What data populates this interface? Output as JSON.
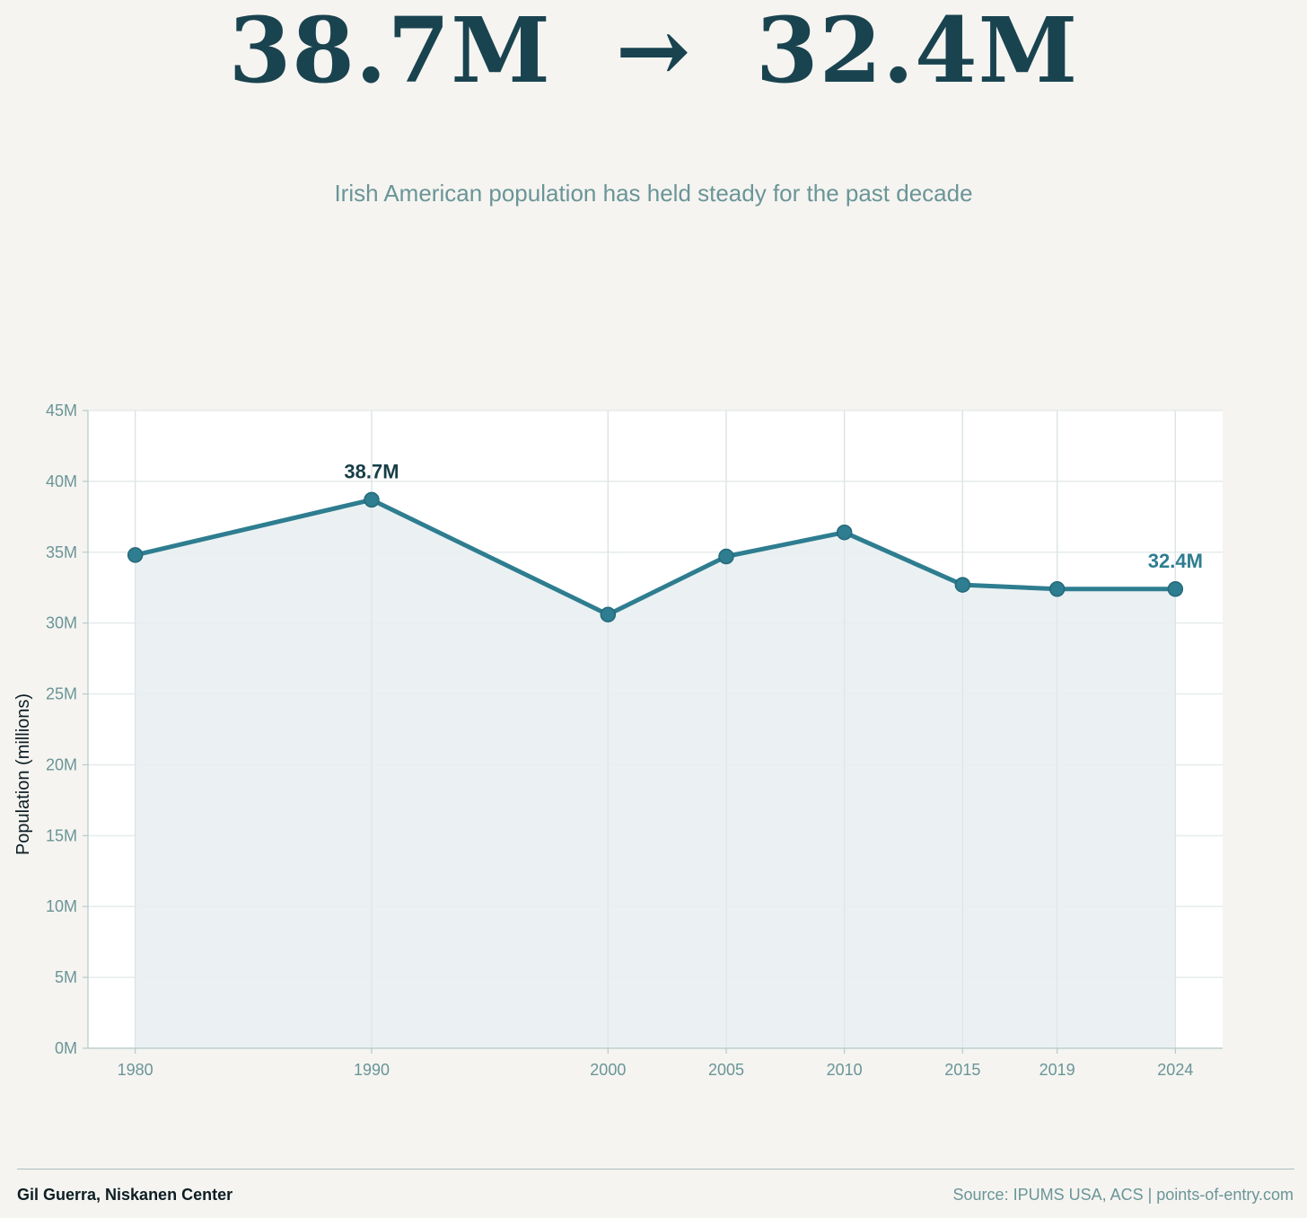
{
  "headline": {
    "start_value": "38.7M",
    "arrow": "→",
    "end_value": "32.4M"
  },
  "subtitle": "Irish American population has held steady for the past decade",
  "footer": {
    "author": "Gil Guerra, Niskanen Center",
    "source": "Source: IPUMS USA, ACS  |  points-of-entry.com"
  },
  "colors": {
    "background": "#f5f4f0",
    "plot_background": "#ffffff",
    "line": "#2e7d90",
    "area_fill": "#e9f0f1",
    "headline": "#1a4350",
    "muted_text": "#6a9598",
    "grid": "#e6ebec"
  },
  "chart_data": {
    "type": "area",
    "x": [
      1980,
      1990,
      2000,
      2005,
      2010,
      2015,
      2019,
      2024
    ],
    "series": [
      {
        "values": [
          34.8,
          38.7,
          30.6,
          34.7,
          36.4,
          32.7,
          32.4,
          32.4
        ]
      }
    ],
    "xlabel": "",
    "ylabel": "Population (millions)",
    "xlim": [
      1978,
      2026
    ],
    "ylim": [
      0,
      45
    ],
    "x_ticks": [
      "1980",
      "1990",
      "2000",
      "2005",
      "2010",
      "2015",
      "2019",
      "2024"
    ],
    "y_ticks": [
      "0M",
      "5M",
      "10M",
      "15M",
      "20M",
      "25M",
      "30M",
      "35M",
      "40M",
      "45M"
    ],
    "grid": true,
    "annotations": [
      {
        "x": 1990,
        "y": 38.7,
        "text": "38.7M",
        "color": "#173e48"
      },
      {
        "x": 2024,
        "y": 32.4,
        "text": "32.4M",
        "color": "#2e7d90"
      }
    ]
  }
}
